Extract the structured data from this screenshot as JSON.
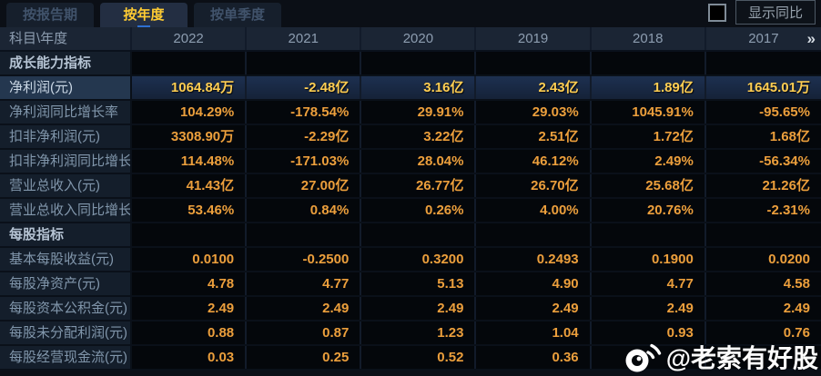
{
  "tabs": [
    {
      "label": "按报告期",
      "active": false
    },
    {
      "label": "按年度",
      "active": true
    },
    {
      "label": "按单季度",
      "active": false
    }
  ],
  "toolbar": {
    "show_yoy_label": "显示同比",
    "checkbox_checked": false
  },
  "table": {
    "corner_label": "科目\\年度",
    "years": [
      "2022",
      "2021",
      "2020",
      "2019",
      "2018",
      "2017"
    ],
    "more_icon": "»",
    "sections": [
      {
        "title": "成长能力指标",
        "rows": [
          {
            "label": "净利润(元)",
            "highlight": true,
            "values": [
              "1064.84万",
              "-2.48亿",
              "3.16亿",
              "2.43亿",
              "1.89亿",
              "1645.01万"
            ]
          },
          {
            "label": "净利润同比增长率",
            "highlight": false,
            "values": [
              "104.29%",
              "-178.54%",
              "29.91%",
              "29.03%",
              "1045.91%",
              "-95.65%"
            ]
          },
          {
            "label": "扣非净利润(元)",
            "highlight": false,
            "values": [
              "3308.90万",
              "-2.29亿",
              "3.22亿",
              "2.51亿",
              "1.72亿",
              "1.68亿"
            ]
          },
          {
            "label": "扣非净利润同比增长率",
            "highlight": false,
            "values": [
              "114.48%",
              "-171.03%",
              "28.04%",
              "46.12%",
              "2.49%",
              "-56.34%"
            ]
          },
          {
            "label": "营业总收入(元)",
            "highlight": false,
            "values": [
              "41.43亿",
              "27.00亿",
              "26.77亿",
              "26.70亿",
              "25.68亿",
              "21.26亿"
            ]
          },
          {
            "label": "营业总收入同比增长率",
            "highlight": false,
            "values": [
              "53.46%",
              "0.84%",
              "0.26%",
              "4.00%",
              "20.76%",
              "-2.31%"
            ]
          }
        ]
      },
      {
        "title": "每股指标",
        "rows": [
          {
            "label": "基本每股收益(元)",
            "highlight": false,
            "values": [
              "0.0100",
              "-0.2500",
              "0.3200",
              "0.2493",
              "0.1900",
              "0.0200"
            ]
          },
          {
            "label": "每股净资产(元)",
            "highlight": false,
            "values": [
              "4.78",
              "4.77",
              "5.13",
              "4.90",
              "4.77",
              "4.58"
            ]
          },
          {
            "label": "每股资本公积金(元)",
            "highlight": false,
            "values": [
              "2.49",
              "2.49",
              "2.49",
              "2.49",
              "2.49",
              "2.49"
            ]
          },
          {
            "label": "每股未分配利润(元)",
            "highlight": false,
            "values": [
              "0.88",
              "0.87",
              "1.23",
              "1.04",
              "0.93",
              "0.76"
            ]
          },
          {
            "label": "每股经营现金流(元)",
            "highlight": false,
            "values": [
              "0.03",
              "0.25",
              "0.52",
              "0.36",
              "",
              ""
            ]
          }
        ]
      }
    ]
  },
  "watermark": {
    "handle": "@老索有好股",
    "icon": "weibo-icon"
  },
  "colors": {
    "value_orange": "#ec9f3c",
    "highlight_gold": "#ffce52",
    "active_tab_text": "#ffcc33",
    "header_bg": "#1b2534",
    "label_bg": "#141e2b",
    "highlight_row_bg": "#1d3050"
  }
}
